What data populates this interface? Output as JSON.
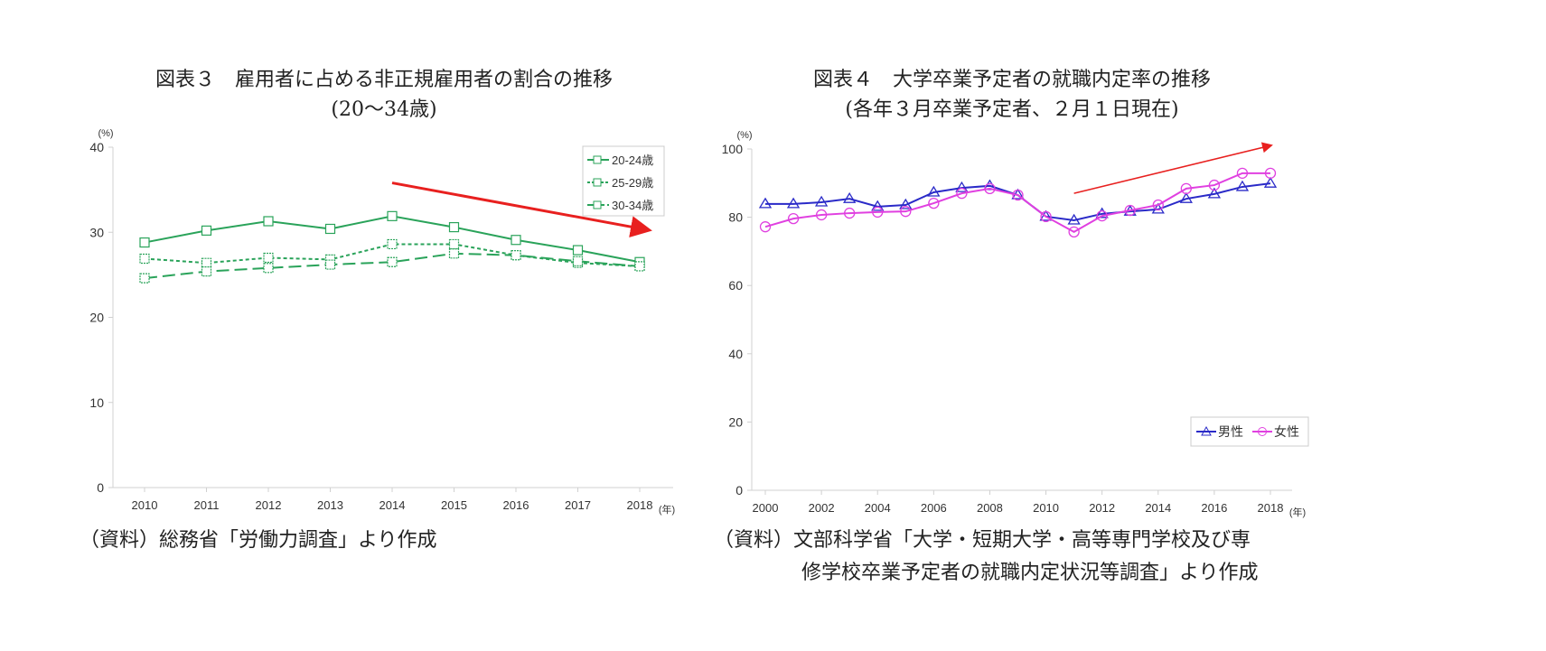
{
  "chart_data": [
    {
      "type": "line",
      "title": "図表３　雇用者に占める非正規雇用者の割合の推移",
      "subtitle": "(20～34歳)",
      "ylabel": "(%)",
      "xlabel": "(年)",
      "ylim": [
        0,
        40
      ],
      "yticks": [
        "0",
        "10",
        "20",
        "30",
        "40"
      ],
      "categories": [
        "2010",
        "2011",
        "2012",
        "2013",
        "2014",
        "2015",
        "2016",
        "2017",
        "2018"
      ],
      "grid": false,
      "legend": "top-right",
      "series": [
        {
          "name": "20-24歳",
          "style": "solid",
          "color": "#2aa35a",
          "values": [
            28.8,
            30.2,
            31.3,
            30.4,
            31.9,
            30.6,
            29.1,
            27.9,
            26.5
          ]
        },
        {
          "name": "25-29歳",
          "style": "dotted",
          "color": "#2aa35a",
          "values": [
            26.9,
            26.4,
            27.0,
            26.8,
            28.6,
            28.6,
            27.3,
            26.4,
            26.0
          ]
        },
        {
          "name": "30-34歳",
          "style": "dashed",
          "color": "#2aa35a",
          "values": [
            24.6,
            25.4,
            25.8,
            26.2,
            26.5,
            27.5,
            27.3,
            26.6,
            26.0
          ]
        }
      ],
      "annotation": {
        "type": "arrow",
        "color": "#e8201f",
        "direction": "down",
        "from": [
          "2014",
          35.8
        ],
        "to": [
          "2018",
          30.3
        ]
      },
      "source": "（資料）総務省「労働力調査」より作成"
    },
    {
      "type": "line",
      "title": "図表４　大学卒業予定者の就職内定率の推移",
      "subtitle": "(各年３月卒業予定者、２月１日現在)",
      "ylabel": "(%)",
      "xlabel": "(年)",
      "ylim": [
        0,
        100
      ],
      "yticks": [
        "0",
        "20",
        "40",
        "60",
        "80",
        "100"
      ],
      "categories": [
        "2000",
        "2001",
        "2002",
        "2003",
        "2004",
        "2005",
        "2006",
        "2007",
        "2008",
        "2009",
        "2010",
        "2011",
        "2012",
        "2013",
        "2014",
        "2015",
        "2016",
        "2017",
        "2018"
      ],
      "xticks": [
        "2000",
        "2002",
        "2004",
        "2006",
        "2008",
        "2010",
        "2012",
        "2014",
        "2016",
        "2018"
      ],
      "grid": false,
      "legend": "bottom-right",
      "series": [
        {
          "name": "男性",
          "marker": "triangle",
          "color": "#2a2ac8",
          "values": [
            83.9,
            83.9,
            84.4,
            85.4,
            83.1,
            83.6,
            87.3,
            88.6,
            89.2,
            86.5,
            80.2,
            79.1,
            81.0,
            81.7,
            82.3,
            85.4,
            86.8,
            88.9,
            89.9
          ]
        },
        {
          "name": "女性",
          "marker": "circle",
          "color": "#e040e0",
          "values": [
            77.2,
            79.6,
            80.7,
            81.2,
            81.5,
            81.7,
            84.1,
            87.0,
            88.4,
            86.5,
            80.2,
            75.7,
            80.4,
            82.0,
            83.6,
            88.4,
            89.4,
            92.9,
            92.9
          ]
        }
      ],
      "annotation": {
        "type": "arrow",
        "color": "#e8201f",
        "direction": "up",
        "from": [
          "2011",
          87.0
        ],
        "to": [
          "2018",
          101.0
        ]
      },
      "source_lines": [
        "（資料）文部科学省「大学・短期大学・高等専門学校及び専",
        "修学校卒業予定者の就職内定状況等調査」より作成"
      ]
    }
  ]
}
